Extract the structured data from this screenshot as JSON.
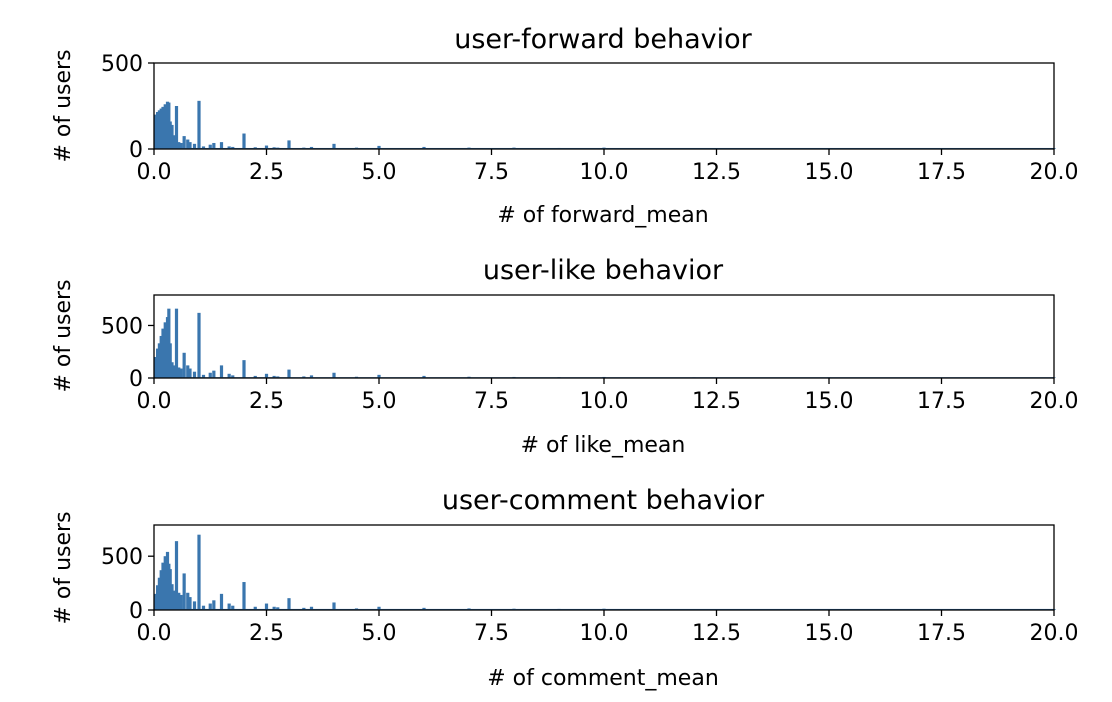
{
  "colors": {
    "bar": "#3a76ae"
  },
  "chart_data": [
    {
      "type": "bar",
      "title": "user-forward behavior",
      "xlabel": "# of forward_mean",
      "ylabel": "# of users",
      "xlim": [
        0,
        20
      ],
      "ylim": [
        0,
        500
      ],
      "x_ticks": [
        "0.0",
        "2.5",
        "5.0",
        "7.5",
        "10.0",
        "12.5",
        "15.0",
        "17.5",
        "20.0"
      ],
      "y_ticks": [
        "0",
        "500"
      ],
      "bins": [
        {
          "x": 0.04,
          "y": 200
        },
        {
          "x": 0.08,
          "y": 215
        },
        {
          "x": 0.12,
          "y": 225
        },
        {
          "x": 0.16,
          "y": 235
        },
        {
          "x": 0.2,
          "y": 245
        },
        {
          "x": 0.25,
          "y": 260
        },
        {
          "x": 0.3,
          "y": 275
        },
        {
          "x": 0.33,
          "y": 270
        },
        {
          "x": 0.36,
          "y": 160
        },
        {
          "x": 0.4,
          "y": 140
        },
        {
          "x": 0.45,
          "y": 80
        },
        {
          "x": 0.5,
          "y": 250
        },
        {
          "x": 0.55,
          "y": 40
        },
        {
          "x": 0.6,
          "y": 35
        },
        {
          "x": 0.67,
          "y": 75
        },
        {
          "x": 0.75,
          "y": 55
        },
        {
          "x": 0.8,
          "y": 40
        },
        {
          "x": 0.9,
          "y": 30
        },
        {
          "x": 1.0,
          "y": 280
        },
        {
          "x": 1.1,
          "y": 15
        },
        {
          "x": 1.25,
          "y": 25
        },
        {
          "x": 1.33,
          "y": 35
        },
        {
          "x": 1.5,
          "y": 40
        },
        {
          "x": 1.67,
          "y": 15
        },
        {
          "x": 1.75,
          "y": 12
        },
        {
          "x": 2.0,
          "y": 90
        },
        {
          "x": 2.25,
          "y": 10
        },
        {
          "x": 2.5,
          "y": 20
        },
        {
          "x": 2.67,
          "y": 10
        },
        {
          "x": 2.75,
          "y": 8
        },
        {
          "x": 3.0,
          "y": 50
        },
        {
          "x": 3.33,
          "y": 8
        },
        {
          "x": 3.5,
          "y": 12
        },
        {
          "x": 4.0,
          "y": 30
        },
        {
          "x": 4.5,
          "y": 8
        },
        {
          "x": 5.0,
          "y": 18
        },
        {
          "x": 6.0,
          "y": 12
        },
        {
          "x": 7.0,
          "y": 8
        },
        {
          "x": 8.0,
          "y": 8
        },
        {
          "x": 9.0,
          "y": 6
        },
        {
          "x": 10.0,
          "y": 8
        },
        {
          "x": 12.0,
          "y": 5
        },
        {
          "x": 15.0,
          "y": 5
        },
        {
          "x": 20.0,
          "y": 5
        }
      ],
      "baseline": 6
    },
    {
      "type": "bar",
      "title": "user-like behavior",
      "xlabel": "# of like_mean",
      "ylabel": "# of users",
      "xlim": [
        0,
        20
      ],
      "ylim": [
        0,
        790
      ],
      "x_ticks": [
        "0.0",
        "2.5",
        "5.0",
        "7.5",
        "10.0",
        "12.5",
        "15.0",
        "17.5",
        "20.0"
      ],
      "y_ticks": [
        "0",
        "500"
      ],
      "bins": [
        {
          "x": 0.04,
          "y": 200
        },
        {
          "x": 0.08,
          "y": 280
        },
        {
          "x": 0.12,
          "y": 330
        },
        {
          "x": 0.16,
          "y": 400
        },
        {
          "x": 0.2,
          "y": 470
        },
        {
          "x": 0.25,
          "y": 530
        },
        {
          "x": 0.3,
          "y": 580
        },
        {
          "x": 0.33,
          "y": 660
        },
        {
          "x": 0.36,
          "y": 330
        },
        {
          "x": 0.4,
          "y": 150
        },
        {
          "x": 0.45,
          "y": 120
        },
        {
          "x": 0.5,
          "y": 660
        },
        {
          "x": 0.55,
          "y": 100
        },
        {
          "x": 0.6,
          "y": 90
        },
        {
          "x": 0.67,
          "y": 240
        },
        {
          "x": 0.75,
          "y": 120
        },
        {
          "x": 0.8,
          "y": 90
        },
        {
          "x": 0.9,
          "y": 60
        },
        {
          "x": 1.0,
          "y": 620
        },
        {
          "x": 1.1,
          "y": 30
        },
        {
          "x": 1.25,
          "y": 50
        },
        {
          "x": 1.33,
          "y": 70
        },
        {
          "x": 1.5,
          "y": 120
        },
        {
          "x": 1.67,
          "y": 40
        },
        {
          "x": 1.75,
          "y": 25
        },
        {
          "x": 2.0,
          "y": 170
        },
        {
          "x": 2.25,
          "y": 20
        },
        {
          "x": 2.5,
          "y": 40
        },
        {
          "x": 2.67,
          "y": 20
        },
        {
          "x": 2.75,
          "y": 15
        },
        {
          "x": 3.0,
          "y": 80
        },
        {
          "x": 3.33,
          "y": 15
        },
        {
          "x": 3.5,
          "y": 25
        },
        {
          "x": 4.0,
          "y": 50
        },
        {
          "x": 4.5,
          "y": 12
        },
        {
          "x": 5.0,
          "y": 30
        },
        {
          "x": 6.0,
          "y": 20
        },
        {
          "x": 7.0,
          "y": 12
        },
        {
          "x": 8.0,
          "y": 10
        },
        {
          "x": 9.0,
          "y": 8
        },
        {
          "x": 10.0,
          "y": 10
        },
        {
          "x": 12.0,
          "y": 6
        },
        {
          "x": 15.0,
          "y": 6
        },
        {
          "x": 20.0,
          "y": 6
        }
      ],
      "baseline": 8
    },
    {
      "type": "bar",
      "title": "user-comment behavior",
      "xlabel": "# of comment_mean",
      "ylabel": "# of users",
      "xlim": [
        0,
        20
      ],
      "ylim": [
        0,
        790
      ],
      "x_ticks": [
        "0.0",
        "2.5",
        "5.0",
        "7.5",
        "10.0",
        "12.5",
        "15.0",
        "17.5",
        "20.0"
      ],
      "y_ticks": [
        "0",
        "500"
      ],
      "bins": [
        {
          "x": 0.04,
          "y": 150
        },
        {
          "x": 0.08,
          "y": 230
        },
        {
          "x": 0.12,
          "y": 300
        },
        {
          "x": 0.16,
          "y": 370
        },
        {
          "x": 0.2,
          "y": 440
        },
        {
          "x": 0.25,
          "y": 500
        },
        {
          "x": 0.3,
          "y": 540
        },
        {
          "x": 0.33,
          "y": 430
        },
        {
          "x": 0.36,
          "y": 380
        },
        {
          "x": 0.4,
          "y": 240
        },
        {
          "x": 0.45,
          "y": 180
        },
        {
          "x": 0.5,
          "y": 640
        },
        {
          "x": 0.55,
          "y": 160
        },
        {
          "x": 0.6,
          "y": 140
        },
        {
          "x": 0.67,
          "y": 340
        },
        {
          "x": 0.75,
          "y": 160
        },
        {
          "x": 0.8,
          "y": 120
        },
        {
          "x": 0.9,
          "y": 80
        },
        {
          "x": 1.0,
          "y": 700
        },
        {
          "x": 1.1,
          "y": 40
        },
        {
          "x": 1.25,
          "y": 60
        },
        {
          "x": 1.33,
          "y": 90
        },
        {
          "x": 1.5,
          "y": 150
        },
        {
          "x": 1.67,
          "y": 60
        },
        {
          "x": 1.75,
          "y": 40
        },
        {
          "x": 2.0,
          "y": 260
        },
        {
          "x": 2.25,
          "y": 30
        },
        {
          "x": 2.5,
          "y": 60
        },
        {
          "x": 2.67,
          "y": 30
        },
        {
          "x": 2.75,
          "y": 25
        },
        {
          "x": 3.0,
          "y": 110
        },
        {
          "x": 3.33,
          "y": 20
        },
        {
          "x": 3.5,
          "y": 30
        },
        {
          "x": 4.0,
          "y": 70
        },
        {
          "x": 4.5,
          "y": 15
        },
        {
          "x": 5.0,
          "y": 30
        },
        {
          "x": 6.0,
          "y": 20
        },
        {
          "x": 7.0,
          "y": 15
        },
        {
          "x": 8.0,
          "y": 12
        },
        {
          "x": 9.0,
          "y": 10
        },
        {
          "x": 10.0,
          "y": 12
        },
        {
          "x": 12.0,
          "y": 8
        },
        {
          "x": 15.0,
          "y": 8
        },
        {
          "x": 20.0,
          "y": 8
        }
      ],
      "baseline": 10
    }
  ]
}
